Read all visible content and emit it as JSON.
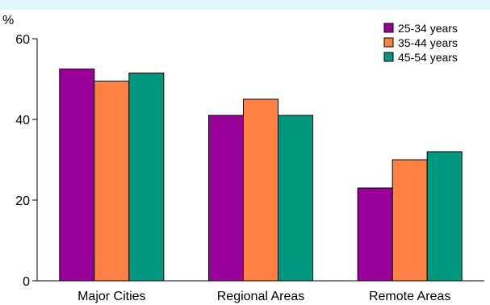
{
  "chart_data": {
    "type": "bar",
    "ylabel": "%",
    "ylim": [
      0,
      60
    ],
    "yticks": [
      0,
      20,
      40,
      60
    ],
    "grid": true,
    "legend_position": "top-right",
    "categories": [
      "Major Cities",
      "Regional Areas",
      "Remote Areas"
    ],
    "series": [
      {
        "name": "25-34 years",
        "color": "#990099",
        "values": [
          52.5,
          41,
          23
        ]
      },
      {
        "name": "35-44 years",
        "color": "#ff8040",
        "values": [
          49.5,
          45,
          30
        ]
      },
      {
        "name": "45-54 years",
        "color": "#009980",
        "values": [
          51.5,
          41,
          32
        ]
      }
    ]
  }
}
